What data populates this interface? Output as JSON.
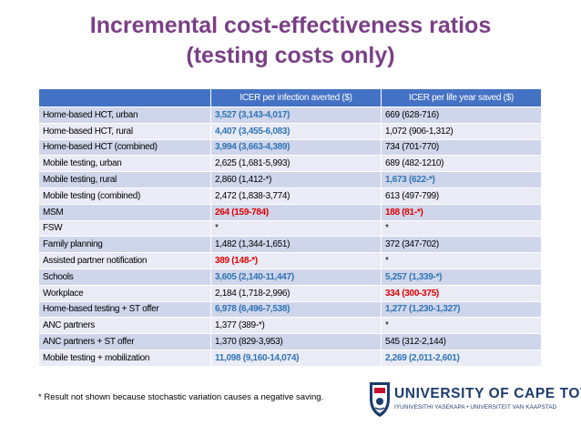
{
  "title": {
    "line1": "Incremental cost-effectiveness ratios",
    "line2": "(testing costs only)"
  },
  "table": {
    "headers": [
      "",
      "ICER per infection averted ($)",
      "ICER per life year saved ($)"
    ],
    "rows": [
      {
        "label": "Home-based HCT, urban",
        "infection": "3,527 (3,143-4,017)",
        "infection_style": "blue",
        "lifeyear": "669 (628-716)",
        "lifeyear_style": "plain"
      },
      {
        "label": "Home-based HCT, rural",
        "infection": "4,407 (3,455-6,083)",
        "infection_style": "blue",
        "lifeyear": "1,072 (906-1,312)",
        "lifeyear_style": "plain"
      },
      {
        "label": "Home-based HCT (combined)",
        "infection": "3,994 (3,663-4,389)",
        "infection_style": "blue",
        "lifeyear": "734 (701-770)",
        "lifeyear_style": "plain"
      },
      {
        "label": "Mobile testing, urban",
        "infection": "2,625 (1,681-5,993)",
        "infection_style": "plain",
        "lifeyear": "689 (482-1210)",
        "lifeyear_style": "plain"
      },
      {
        "label": "Mobile testing, rural",
        "infection": "2,860 (1,412-*)",
        "infection_style": "plain",
        "lifeyear": "1,673 (622-*)",
        "lifeyear_style": "blue"
      },
      {
        "label": "Mobile testing (combined)",
        "infection": "2,472 (1,838-3,774)",
        "infection_style": "plain",
        "lifeyear": "613 (497-799)",
        "lifeyear_style": "plain"
      },
      {
        "label": "MSM",
        "infection": "264 (159-784)",
        "infection_style": "red",
        "lifeyear": "188 (81-*)",
        "lifeyear_style": "red"
      },
      {
        "label": "FSW",
        "infection": "*",
        "infection_style": "plain",
        "lifeyear": "*",
        "lifeyear_style": "plain"
      },
      {
        "label": "Family planning",
        "infection": "1,482 (1,344-1,651)",
        "infection_style": "plain",
        "lifeyear": "372 (347-702)",
        "lifeyear_style": "plain"
      },
      {
        "label": "Assisted partner notification",
        "infection": "389 (148-*)",
        "infection_style": "red",
        "lifeyear": "*",
        "lifeyear_style": "plain"
      },
      {
        "label": "Schools",
        "infection": "3,605 (2,140-11,447)",
        "infection_style": "blue",
        "lifeyear": "5,257 (1,339-*)",
        "lifeyear_style": "blue"
      },
      {
        "label": "Workplace",
        "infection": "2,184 (1,718-2,996)",
        "infection_style": "plain",
        "lifeyear": "334 (300-375)",
        "lifeyear_style": "red"
      },
      {
        "label": "Home-based testing + ST offer",
        "infection": "6,978 (6,496-7,538)",
        "infection_style": "blue",
        "lifeyear": "1,277 (1,230-1,327)",
        "lifeyear_style": "blue"
      },
      {
        "label": "ANC partners",
        "infection": "1,377 (389-*)",
        "infection_style": "plain",
        "lifeyear": "*",
        "lifeyear_style": "plain"
      },
      {
        "label": "ANC partners + ST offer",
        "infection": "1,370 (829-3,953)",
        "infection_style": "plain",
        "lifeyear": "545 (312-2,144)",
        "lifeyear_style": "plain"
      },
      {
        "label": "Mobile testing + mobilization",
        "infection": "11,098 (9,160-14,074)",
        "infection_style": "blue",
        "lifeyear": "2,269 (2,011-2,601)",
        "lifeyear_style": "blue"
      }
    ]
  },
  "footnote": "* Result not shown because stochastic variation causes a negative saving.",
  "logo": {
    "name": "UNIVERSITY OF CAPE TOWN",
    "tagline": "IYUNIVESITHI YASEKAPA • UNIVERSITEIT VAN KAAPSTAD",
    "icon": "university-crest-icon"
  },
  "colors": {
    "title": "#7a3f86",
    "header_bg": "#4472c4",
    "row_odd": "#cfd5ea",
    "row_even": "#e9ebf5",
    "highlight_blue": "#2e75b6",
    "highlight_red": "#e00000",
    "logo_navy": "#1c3b6e"
  }
}
